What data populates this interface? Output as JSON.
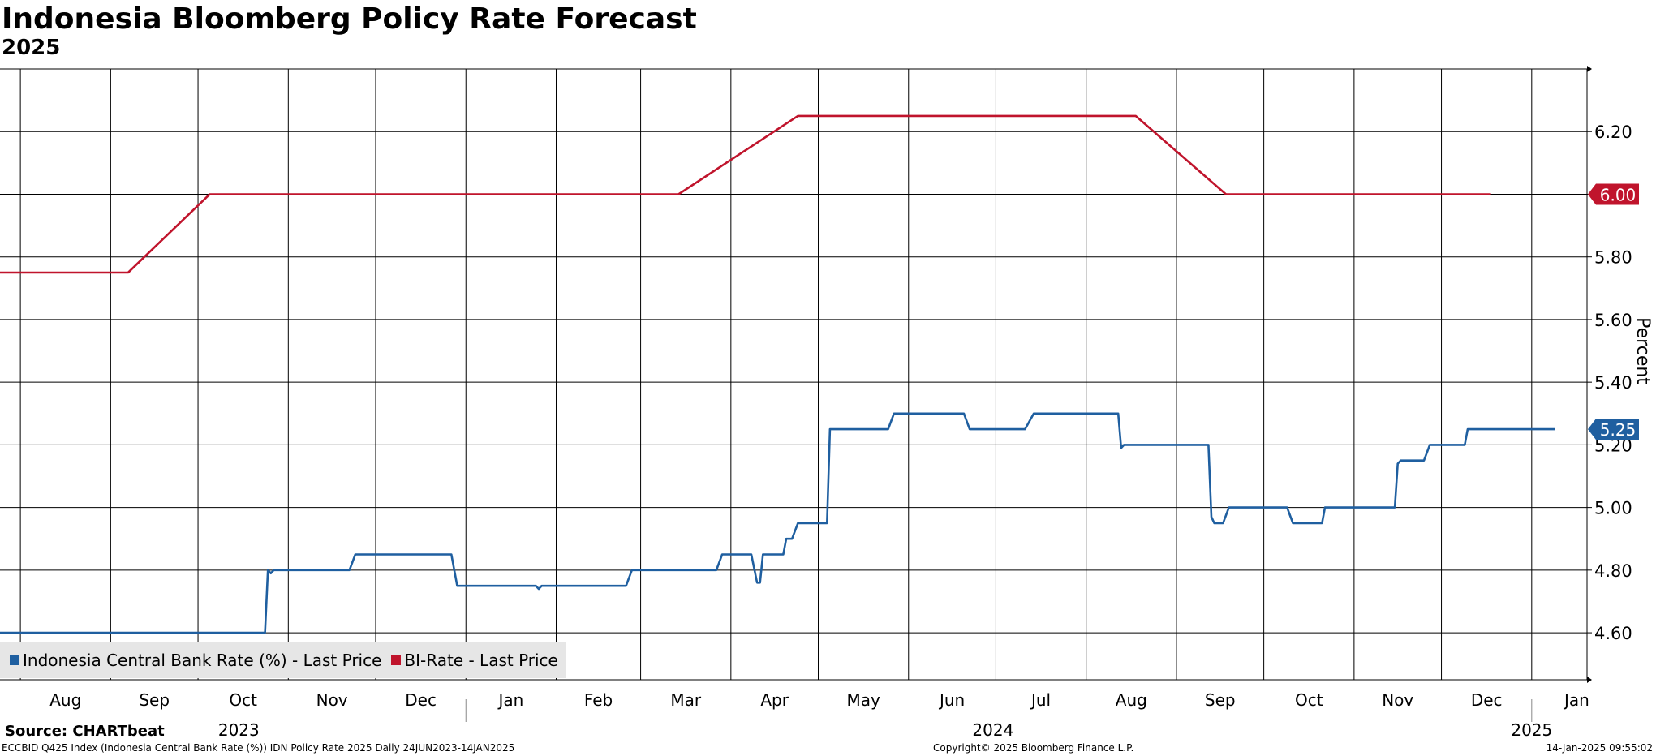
{
  "chart_data": {
    "type": "line",
    "title": "Indonesia Bloomberg Policy Rate Forecast",
    "subtitle": "2025",
    "ylabel": "Percent",
    "ylim": [
      4.45,
      6.4
    ],
    "y_ticks": [
      "4.60",
      "4.80",
      "5.00",
      "5.20",
      "5.40",
      "5.60",
      "5.80",
      "6.00",
      "6.20"
    ],
    "x_range": [
      "2023-07-25",
      "2025-01-20"
    ],
    "month_ticks": [
      {
        "date": "2023-08-01",
        "label": "Aug"
      },
      {
        "date": "2023-09-01",
        "label": "Sep"
      },
      {
        "date": "2023-10-01",
        "label": "Oct"
      },
      {
        "date": "2023-11-01",
        "label": "Nov"
      },
      {
        "date": "2023-12-01",
        "label": "Dec"
      },
      {
        "date": "2024-01-01",
        "label": "Jan"
      },
      {
        "date": "2024-02-01",
        "label": "Feb"
      },
      {
        "date": "2024-03-01",
        "label": "Mar"
      },
      {
        "date": "2024-04-01",
        "label": "Apr"
      },
      {
        "date": "2024-05-01",
        "label": "May"
      },
      {
        "date": "2024-06-01",
        "label": "Jun"
      },
      {
        "date": "2024-07-01",
        "label": "Jul"
      },
      {
        "date": "2024-08-01",
        "label": "Aug"
      },
      {
        "date": "2024-09-01",
        "label": "Sep"
      },
      {
        "date": "2024-10-01",
        "label": "Oct"
      },
      {
        "date": "2024-11-01",
        "label": "Nov"
      },
      {
        "date": "2024-12-01",
        "label": "Dec"
      },
      {
        "date": "2025-01-01",
        "label": "Jan"
      }
    ],
    "year_labels": [
      {
        "date": "2023-10-15",
        "label": "2023"
      },
      {
        "date": "2024-06-30",
        "label": "2024"
      },
      {
        "date": "2025-01-01",
        "label": "2025"
      }
    ],
    "year_separators": [
      "2024-01-01",
      "2025-01-01"
    ],
    "series": [
      {
        "name": "Indonesia Central Bank Rate (%) - Last Price",
        "color": "#1f5fa0",
        "last_value": "5.25",
        "points": [
          [
            "2023-07-24",
            4.6
          ],
          [
            "2023-10-24",
            4.6
          ],
          [
            "2023-10-25",
            4.8
          ],
          [
            "2023-10-26",
            4.79
          ],
          [
            "2023-10-27",
            4.8
          ],
          [
            "2023-11-22",
            4.8
          ],
          [
            "2023-11-24",
            4.85
          ],
          [
            "2023-12-27",
            4.85
          ],
          [
            "2023-12-29",
            4.75
          ],
          [
            "2024-01-25",
            4.75
          ],
          [
            "2024-01-26",
            4.74
          ],
          [
            "2024-01-27",
            4.75
          ],
          [
            "2024-02-25",
            4.75
          ],
          [
            "2024-02-27",
            4.8
          ],
          [
            "2024-03-27",
            4.8
          ],
          [
            "2024-03-29",
            4.85
          ],
          [
            "2024-04-08",
            4.85
          ],
          [
            "2024-04-10",
            4.76
          ],
          [
            "2024-04-11",
            4.76
          ],
          [
            "2024-04-12",
            4.85
          ],
          [
            "2024-04-19",
            4.85
          ],
          [
            "2024-04-20",
            4.9
          ],
          [
            "2024-04-22",
            4.9
          ],
          [
            "2024-04-24",
            4.95
          ],
          [
            "2024-05-04",
            4.95
          ],
          [
            "2024-05-05",
            5.25
          ],
          [
            "2024-05-25",
            5.25
          ],
          [
            "2024-05-27",
            5.3
          ],
          [
            "2024-06-20",
            5.3
          ],
          [
            "2024-06-22",
            5.25
          ],
          [
            "2024-07-11",
            5.25
          ],
          [
            "2024-07-14",
            5.3
          ],
          [
            "2024-08-12",
            5.3
          ],
          [
            "2024-08-13",
            5.19
          ],
          [
            "2024-08-14",
            5.2
          ],
          [
            "2024-09-12",
            5.2
          ],
          [
            "2024-09-13",
            4.97
          ],
          [
            "2024-09-14",
            4.95
          ],
          [
            "2024-09-17",
            4.95
          ],
          [
            "2024-09-19",
            5.0
          ],
          [
            "2024-10-09",
            5.0
          ],
          [
            "2024-10-11",
            4.95
          ],
          [
            "2024-10-21",
            4.95
          ],
          [
            "2024-10-22",
            5.0
          ],
          [
            "2024-11-15",
            5.0
          ],
          [
            "2024-11-16",
            5.14
          ],
          [
            "2024-11-17",
            5.15
          ],
          [
            "2024-11-25",
            5.15
          ],
          [
            "2024-11-27",
            5.2
          ],
          [
            "2024-12-09",
            5.2
          ],
          [
            "2024-12-10",
            5.25
          ],
          [
            "2025-01-09",
            5.25
          ]
        ]
      },
      {
        "name": "BI-Rate - Last Price",
        "color": "#c0142c",
        "last_value": "6.00",
        "points": [
          [
            "2023-07-24",
            5.75
          ],
          [
            "2023-09-07",
            5.75
          ],
          [
            "2023-10-05",
            6.0
          ],
          [
            "2024-03-14",
            6.0
          ],
          [
            "2024-04-24",
            6.25
          ],
          [
            "2024-08-18",
            6.25
          ],
          [
            "2024-09-18",
            6.0
          ],
          [
            "2024-12-18",
            6.0
          ]
        ]
      }
    ]
  },
  "legend": {
    "item1": "Indonesia Central Bank Rate (%) - Last Price",
    "item2": "BI-Rate - Last Price"
  },
  "source": "Source: CHARTbeat",
  "footer": {
    "left": "ECCBID Q425 Index (Indonesia Central Bank Rate (%)) IDN Policy Rate 2025  Daily 24JUN2023-14JAN2025",
    "center": "Copyright© 2025 Bloomberg Finance L.P.",
    "right": "14-Jan-2025 09:55:02"
  }
}
